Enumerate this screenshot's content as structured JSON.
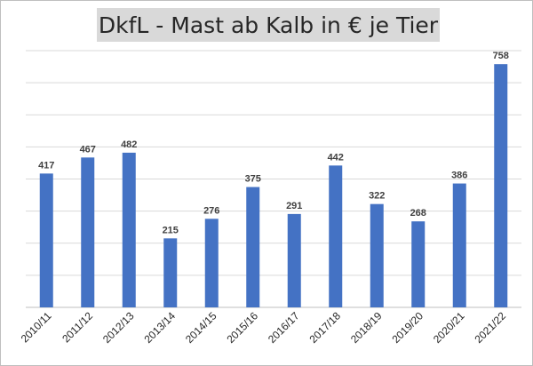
{
  "chart_data": {
    "type": "bar",
    "title": "DkfL - Mast ab Kalb in € je Tier",
    "xlabel": "",
    "ylabel": "",
    "categories": [
      "2010/11",
      "2011/12",
      "2012/13",
      "2013/14",
      "2014/15",
      "2015/16",
      "2016/17",
      "2017/18",
      "2018/19",
      "2019/20",
      "2020/21",
      "2021/22"
    ],
    "values": [
      417,
      467,
      482,
      215,
      276,
      375,
      291,
      442,
      322,
      268,
      386,
      758
    ],
    "ylim": [
      0,
      800
    ],
    "grid": true,
    "bar_color": "#4472c4"
  }
}
